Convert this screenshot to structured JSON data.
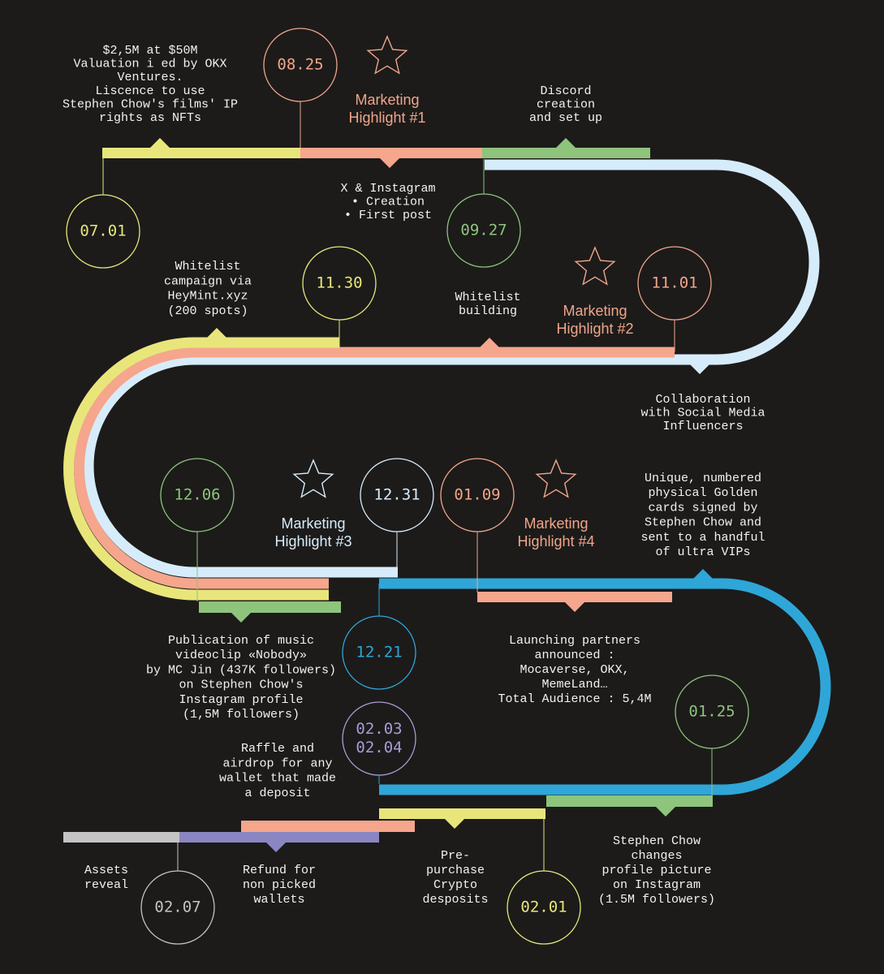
{
  "dates": [
    [
      "08.25"
    ],
    [
      "07.01"
    ],
    [
      "09.27"
    ],
    [
      "11.30"
    ],
    [
      "11.01"
    ],
    [
      "12.06"
    ],
    [
      "12.31"
    ],
    [
      "01.09"
    ],
    [
      "12.21"
    ],
    [
      "01.25"
    ],
    [
      "02.03",
      "02.04"
    ],
    [
      "02.07"
    ],
    [
      "02.01"
    ]
  ],
  "notes": [
    [
      "$2,5M at $50M",
      "Valuation i ed by OKX",
      "Ventures.",
      "Liscence to use",
      "Stephen Chow's films' IP",
      "rights as NFTs"
    ],
    [
      "Discord",
      "creation",
      "and set up"
    ],
    [
      "X & Instagram",
      "• Creation",
      "• First post"
    ],
    [
      "Whitelist",
      "campaign via",
      "HeyMint.xyz",
      "(200 spots)"
    ],
    [
      "Whitelist",
      "building"
    ],
    [
      "Collaboration",
      "with Social Media",
      "Influencers"
    ],
    [
      "Unique, numbered",
      "physical Golden",
      "cards signed by",
      "Stephen Chow and",
      "sent to a handful",
      "of ultra VIPs"
    ],
    [
      "Publication of music",
      "videoclip «Nobody»",
      "by MC Jin (437K followers)",
      "on Stephen Chow's",
      "Instagram profile",
      "(1,5M followers)"
    ],
    [
      "Launching partners",
      "announced :",
      "Mocaverse, OKX,",
      "MemeLand…",
      "Total Audience : 5,4M"
    ],
    [
      "Raffle and",
      "airdrop for any",
      "wallet that made",
      "a deposit"
    ],
    [
      "Assets",
      "reveal"
    ],
    [
      "Refund for",
      "non picked",
      "wallets"
    ],
    [
      "Pre-",
      "purchase",
      "Crypto",
      "desposits"
    ],
    [
      "Stephen Chow",
      "changes",
      "profile picture",
      "on Instagram",
      "(1.5M followers)"
    ]
  ],
  "highlights": [
    [
      "Marketing",
      "Highlight #1"
    ],
    [
      "Marketing",
      "Highlight #2"
    ],
    [
      "Marketing",
      "Highlight #3"
    ],
    [
      "Marketing",
      "Highlight #4"
    ]
  ]
}
